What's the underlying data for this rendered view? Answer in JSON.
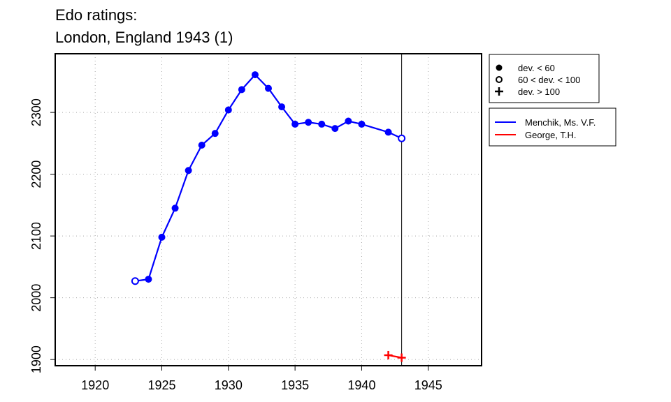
{
  "chart_data": {
    "type": "line",
    "title": [
      "Edo ratings:",
      "London, England 1943 (1)"
    ],
    "xlabel": "",
    "ylabel": "",
    "xlim": [
      1917,
      1949
    ],
    "ylim": [
      1890,
      2395
    ],
    "x_ticks": [
      1920,
      1925,
      1930,
      1935,
      1940,
      1945
    ],
    "y_ticks": [
      1900,
      2000,
      2100,
      2200,
      2300
    ],
    "grid": true,
    "reference_line_x": 1943,
    "deviation_legend": [
      {
        "marker": "filled-circle",
        "label": "dev. < 60"
      },
      {
        "marker": "open-circle",
        "label": "60 < dev. < 100"
      },
      {
        "marker": "plus",
        "label": "dev. > 100"
      }
    ],
    "series": [
      {
        "name": "Menchik, Ms. V.F.",
        "color": "#0000ff",
        "points": [
          {
            "x": 1923,
            "y": 2027,
            "marker": "open-circle"
          },
          {
            "x": 1924,
            "y": 2030,
            "marker": "filled-circle"
          },
          {
            "x": 1925,
            "y": 2098,
            "marker": "filled-circle"
          },
          {
            "x": 1926,
            "y": 2145,
            "marker": "filled-circle"
          },
          {
            "x": 1927,
            "y": 2206,
            "marker": "filled-circle"
          },
          {
            "x": 1928,
            "y": 2247,
            "marker": "filled-circle"
          },
          {
            "x": 1929,
            "y": 2266,
            "marker": "filled-circle"
          },
          {
            "x": 1930,
            "y": 2304,
            "marker": "filled-circle"
          },
          {
            "x": 1931,
            "y": 2337,
            "marker": "filled-circle"
          },
          {
            "x": 1932,
            "y": 2361,
            "marker": "filled-circle"
          },
          {
            "x": 1933,
            "y": 2339,
            "marker": "filled-circle"
          },
          {
            "x": 1934,
            "y": 2309,
            "marker": "filled-circle"
          },
          {
            "x": 1935,
            "y": 2281,
            "marker": "filled-circle"
          },
          {
            "x": 1936,
            "y": 2284,
            "marker": "filled-circle"
          },
          {
            "x": 1937,
            "y": 2281,
            "marker": "filled-circle"
          },
          {
            "x": 1938,
            "y": 2274,
            "marker": "filled-circle"
          },
          {
            "x": 1939,
            "y": 2286,
            "marker": "filled-circle"
          },
          {
            "x": 1940,
            "y": 2281,
            "marker": "filled-circle"
          },
          {
            "x": 1942,
            "y": 2268,
            "marker": "filled-circle"
          },
          {
            "x": 1943,
            "y": 2258,
            "marker": "open-circle"
          }
        ]
      },
      {
        "name": "George, T.H.",
        "color": "#ff0000",
        "points": [
          {
            "x": 1942,
            "y": 1907,
            "marker": "plus"
          },
          {
            "x": 1943,
            "y": 1903,
            "marker": "plus"
          }
        ]
      }
    ]
  }
}
